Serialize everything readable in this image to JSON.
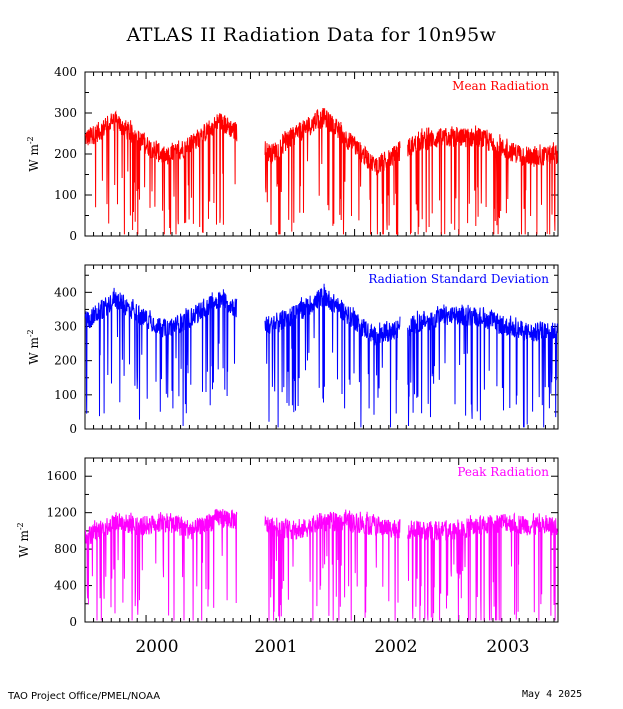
{
  "title": "ATLAS II Radiation Data for 10n95w",
  "footer": {
    "left": "TAO Project Office/PMEL/NOAA",
    "right": "May  4 2025"
  },
  "x_ticks": [
    "2000",
    "2001",
    "2002",
    "2003"
  ],
  "colors": {
    "mean": "#ff0000",
    "sd": "#0000ff",
    "peak": "#ff00ff"
  },
  "chart_data": [
    {
      "type": "line",
      "name": "mean",
      "legend": "Mean Radiation",
      "ylabel": "W m",
      "ylabel_sup": "-2",
      "ylim": [
        0,
        400
      ],
      "yticks": [
        "0",
        "100",
        "200",
        "300",
        "400"
      ],
      "x_range": [
        "1999-06-01",
        "2003-12-15"
      ],
      "gaps": [
        [
          "2000-11-15",
          "2001-02-20"
        ],
        [
          "2002-06-10",
          "2002-07-05"
        ]
      ],
      "series": [
        {
          "values_approx": {
            "1999-06": 240,
            "1999-09": 280,
            "1999-12": 230,
            "2000-03": 190,
            "2000-06": 230,
            "2000-09": 280,
            "2001-03": 200,
            "2001-06": 250,
            "2001-09": 290,
            "2001-12": 230,
            "2002-03": 170,
            "2002-08": 230,
            "2002-11": 240,
            "2003-03": 240,
            "2003-06": 210,
            "2003-09": 190,
            "2003-12": 200
          }
        }
      ]
    },
    {
      "type": "line",
      "name": "sd",
      "legend": "Radiation Standard Deviation",
      "ylabel": "W m",
      "ylabel_sup": "-2",
      "ylim": [
        0,
        480
      ],
      "yticks": [
        "0",
        "100",
        "200",
        "300",
        "400"
      ],
      "x_range": [
        "1999-06-01",
        "2003-12-15"
      ],
      "gaps": [
        [
          "2000-11-15",
          "2001-02-20"
        ],
        [
          "2002-06-10",
          "2002-07-05"
        ]
      ],
      "series": [
        {
          "values_approx": {
            "1999-06": 320,
            "1999-09": 380,
            "1999-12": 330,
            "2000-03": 290,
            "2000-06": 330,
            "2000-09": 380,
            "2001-03": 300,
            "2001-06": 340,
            "2001-09": 390,
            "2001-12": 330,
            "2002-03": 270,
            "2002-08": 310,
            "2002-11": 330,
            "2003-03": 330,
            "2003-06": 300,
            "2003-09": 280,
            "2003-12": 290
          }
        }
      ]
    },
    {
      "type": "line",
      "name": "peak",
      "legend": "Peak Radiation",
      "ylabel": "W m",
      "ylabel_sup": "-2",
      "ylim": [
        0,
        1800
      ],
      "yticks": [
        "0",
        "400",
        "800",
        "1200",
        "1600"
      ],
      "x_range": [
        "1999-06-01",
        "2003-12-15"
      ],
      "gaps": [
        [
          "2000-11-15",
          "2001-02-20"
        ],
        [
          "2002-06-10",
          "2002-07-05"
        ]
      ],
      "series": [
        {
          "values_approx": {
            "1999-06": 950,
            "1999-09": 1100,
            "1999-12": 1050,
            "2000-03": 1100,
            "2000-06": 1000,
            "2000-09": 1150,
            "2001-03": 1050,
            "2001-06": 1000,
            "2001-09": 1100,
            "2001-12": 1100,
            "2002-03": 1050,
            "2002-08": 1000,
            "2002-11": 1000,
            "2003-03": 1050,
            "2003-06": 1100,
            "2003-09": 1050,
            "2003-12": 1050
          }
        }
      ]
    }
  ]
}
